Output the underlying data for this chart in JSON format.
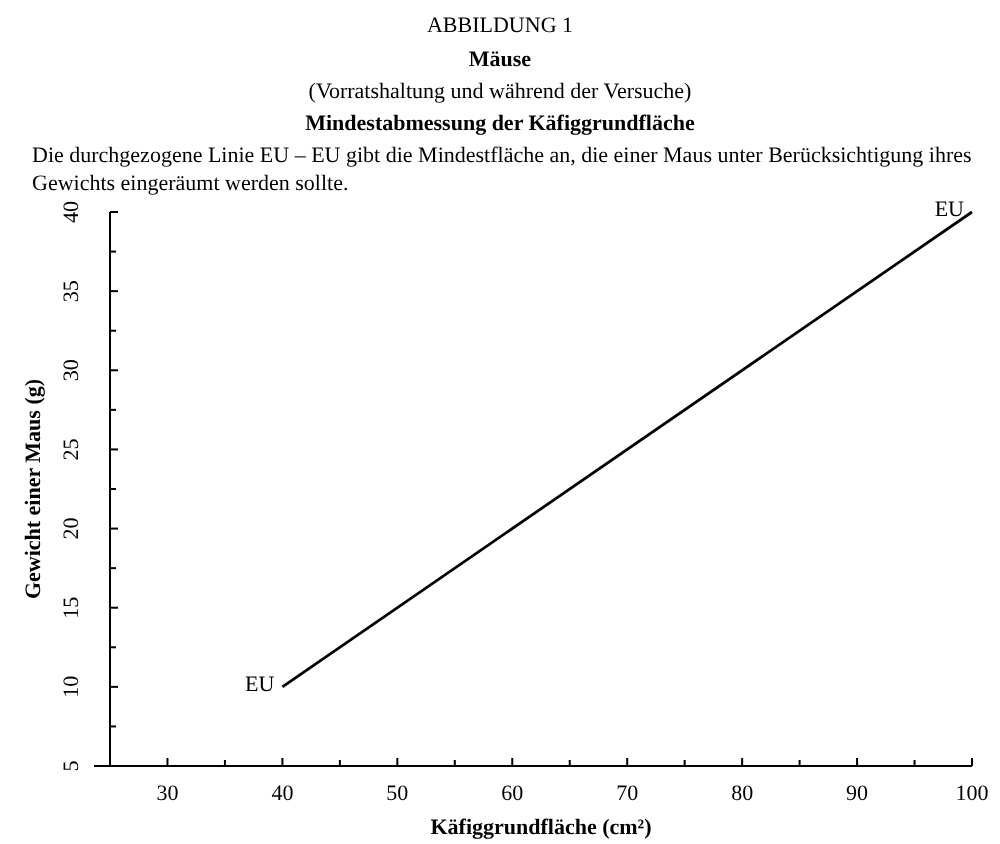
{
  "chart_data": {
    "type": "line",
    "title": "ABBILDUNG 1",
    "subtitle": "Mäuse",
    "annotations": [
      "(Vorratshaltung und während der Versuche)",
      "Mindestabmessung der Käfiggrundfläche",
      "Die durchgezogene Linie EU – EU gibt die Mindestfläche an, die einer Maus unter Berücksichtigung ihres Gewichts eingeräumt werden sollte.",
      {
        "text": "EU",
        "x": 40,
        "y": 10
      },
      {
        "text": "EU",
        "x": 100,
        "y": 40
      }
    ],
    "xlabel": "Käfiggrundfläche (cm²)",
    "ylabel": "Gewicht einer Maus (g)",
    "x": [
      40,
      100
    ],
    "series": [
      {
        "color": "#000000",
        "values": [
          10,
          40
        ]
      }
    ],
    "xlim": [
      25,
      100
    ],
    "ylim": [
      5,
      40
    ],
    "xticks": [
      30,
      {
        "value": 35,
        "label": null
      },
      40,
      {
        "value": 45,
        "label": null
      },
      50,
      {
        "value": 55,
        "label": null
      },
      60,
      {
        "value": 65,
        "label": null
      },
      70,
      {
        "value": 75,
        "label": null
      },
      80,
      {
        "value": 85,
        "label": null
      },
      90,
      {
        "value": 95,
        "label": null
      },
      100
    ],
    "yticks": [
      5,
      {
        "value": 7.5,
        "label": null
      },
      10,
      {
        "value": 12.5,
        "label": null
      },
      15,
      {
        "value": 17.5,
        "label": null
      },
      20,
      {
        "value": 22.5,
        "label": null
      },
      25,
      {
        "value": 27.5,
        "label": null
      },
      30,
      {
        "value": 32.5,
        "label": null
      },
      35,
      {
        "value": 37.5,
        "label": null
      },
      40
    ],
    "grid": false,
    "marker": "none",
    "line_style": "solid"
  }
}
